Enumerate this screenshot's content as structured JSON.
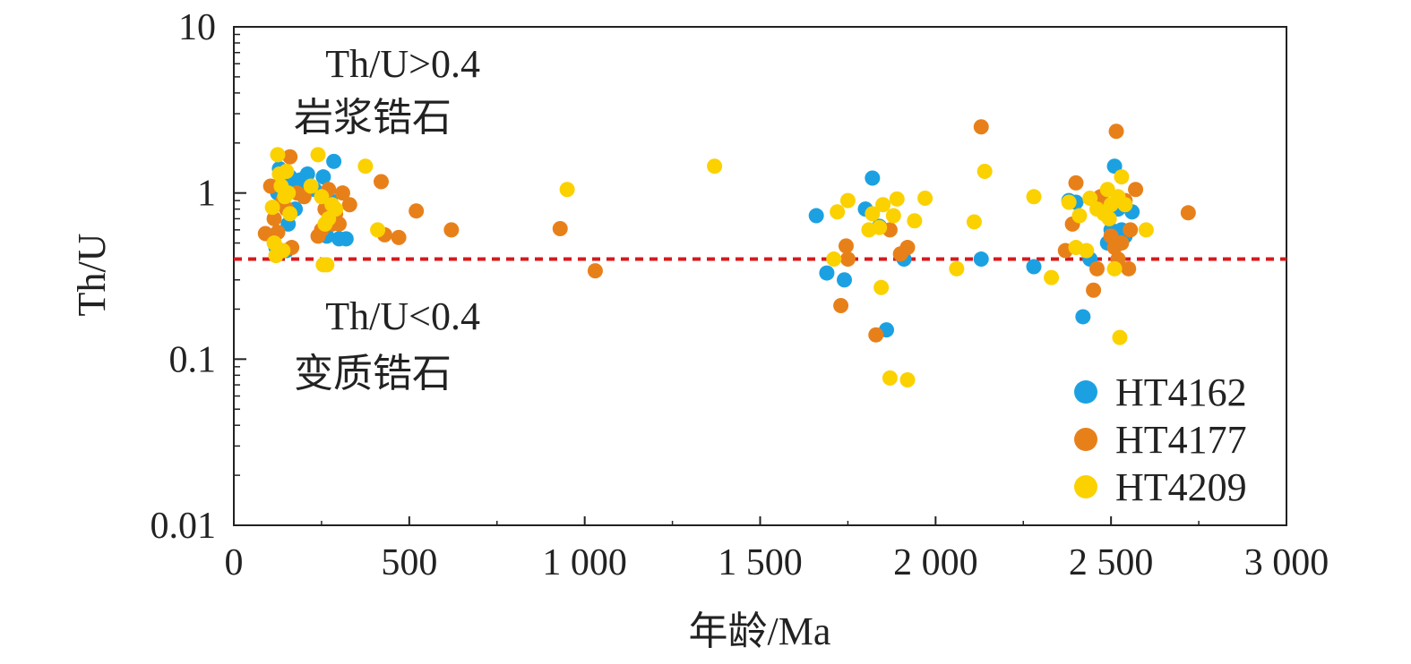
{
  "chart_data": {
    "type": "scatter",
    "xlabel": "年龄/Ma",
    "ylabel": "Th/U",
    "xlim": [
      0,
      3000
    ],
    "ylim": [
      0.01,
      10
    ],
    "yscale": "log",
    "grid": false,
    "legend_position": "bottom-right",
    "x_ticks": [
      {
        "value": 0,
        "label": "0"
      },
      {
        "value": 500,
        "label": "500"
      },
      {
        "value": 1000,
        "label": "1 000"
      },
      {
        "value": 1500,
        "label": "1 500"
      },
      {
        "value": 2000,
        "label": "2 000"
      },
      {
        "value": 2500,
        "label": "2 500"
      },
      {
        "value": 3000,
        "label": "3 000"
      }
    ],
    "y_ticks": [
      {
        "value": 0.01,
        "label": "0.01"
      },
      {
        "value": 0.1,
        "label": "0.1"
      },
      {
        "value": 1,
        "label": "1"
      },
      {
        "value": 10,
        "label": "10"
      }
    ],
    "reference_line": {
      "y": 0.4,
      "color": "#d7191c",
      "style": "dashed"
    },
    "annotations": {
      "upper_line1": "Th/U>0.4",
      "upper_line2": "岩浆锆石",
      "lower_line1": "Th/U<0.4",
      "lower_line2": "变质锆石"
    },
    "series": [
      {
        "name": "HT4162",
        "color": "#1ba1e2",
        "points": [
          [
            120,
            0.47
          ],
          [
            125,
            1.0
          ],
          [
            130,
            1.4
          ],
          [
            140,
            1.2
          ],
          [
            150,
            0.45
          ],
          [
            155,
            0.65
          ],
          [
            160,
            1.25
          ],
          [
            165,
            1.1
          ],
          [
            175,
            0.8
          ],
          [
            190,
            1.2
          ],
          [
            200,
            1.05
          ],
          [
            210,
            1.3
          ],
          [
            230,
            1.05
          ],
          [
            255,
            1.25
          ],
          [
            265,
            0.55
          ],
          [
            275,
            0.9
          ],
          [
            285,
            1.55
          ],
          [
            300,
            0.53
          ],
          [
            320,
            0.53
          ],
          [
            1660,
            0.73
          ],
          [
            1690,
            0.33
          ],
          [
            1740,
            0.3
          ],
          [
            1800,
            0.8
          ],
          [
            1820,
            1.23
          ],
          [
            1840,
            0.63
          ],
          [
            1860,
            0.15
          ],
          [
            1910,
            0.4
          ],
          [
            2130,
            0.4
          ],
          [
            2280,
            0.36
          ],
          [
            2380,
            0.9
          ],
          [
            2400,
            0.88
          ],
          [
            2420,
            0.18
          ],
          [
            2440,
            0.4
          ],
          [
            2490,
            0.5
          ],
          [
            2500,
            0.6
          ],
          [
            2510,
            1.45
          ],
          [
            2520,
            0.8
          ],
          [
            2530,
            0.6
          ],
          [
            2540,
            0.55
          ],
          [
            2560,
            0.77
          ]
        ]
      },
      {
        "name": "HT4177",
        "color": "#e8801a",
        "points": [
          [
            90,
            0.57
          ],
          [
            105,
            1.1
          ],
          [
            115,
            0.7
          ],
          [
            125,
            0.58
          ],
          [
            140,
            0.9
          ],
          [
            150,
            0.8
          ],
          [
            160,
            1.65
          ],
          [
            165,
            0.47
          ],
          [
            180,
            1.0
          ],
          [
            200,
            0.95
          ],
          [
            240,
            0.55
          ],
          [
            250,
            0.6
          ],
          [
            260,
            0.8
          ],
          [
            270,
            1.05
          ],
          [
            280,
            0.65
          ],
          [
            290,
            0.75
          ],
          [
            300,
            0.65
          ],
          [
            310,
            1.0
          ],
          [
            330,
            0.85
          ],
          [
            420,
            1.17
          ],
          [
            430,
            0.56
          ],
          [
            470,
            0.54
          ],
          [
            520,
            0.78
          ],
          [
            620,
            0.6
          ],
          [
            930,
            0.61
          ],
          [
            1030,
            0.34
          ],
          [
            1730,
            0.21
          ],
          [
            1745,
            0.48
          ],
          [
            1750,
            0.4
          ],
          [
            1830,
            0.14
          ],
          [
            1870,
            0.6
          ],
          [
            1900,
            0.43
          ],
          [
            1920,
            0.47
          ],
          [
            2130,
            2.5
          ],
          [
            2370,
            0.45
          ],
          [
            2390,
            0.65
          ],
          [
            2400,
            1.15
          ],
          [
            2450,
            0.26
          ],
          [
            2460,
            0.35
          ],
          [
            2470,
            0.95
          ],
          [
            2490,
            0.85
          ],
          [
            2500,
            0.55
          ],
          [
            2510,
            0.47
          ],
          [
            2515,
            2.35
          ],
          [
            2520,
            0.4
          ],
          [
            2530,
            0.5
          ],
          [
            2540,
            0.9
          ],
          [
            2550,
            0.35
          ],
          [
            2555,
            0.6
          ],
          [
            2570,
            1.05
          ],
          [
            2720,
            0.76
          ]
        ]
      },
      {
        "name": "HT4209",
        "color": "#fbd100",
        "points": [
          [
            110,
            0.82
          ],
          [
            115,
            0.5
          ],
          [
            120,
            0.42
          ],
          [
            125,
            1.7
          ],
          [
            130,
            1.3
          ],
          [
            135,
            1.1
          ],
          [
            140,
            0.45
          ],
          [
            145,
            0.95
          ],
          [
            150,
            1.35
          ],
          [
            155,
            1.0
          ],
          [
            160,
            0.75
          ],
          [
            220,
            1.1
          ],
          [
            240,
            1.7
          ],
          [
            250,
            0.95
          ],
          [
            255,
            0.37
          ],
          [
            260,
            0.65
          ],
          [
            265,
            0.37
          ],
          [
            270,
            0.7
          ],
          [
            280,
            0.85
          ],
          [
            290,
            0.8
          ],
          [
            375,
            1.45
          ],
          [
            410,
            0.6
          ],
          [
            950,
            1.05
          ],
          [
            1370,
            1.45
          ],
          [
            1710,
            0.4
          ],
          [
            1720,
            0.77
          ],
          [
            1750,
            0.9
          ],
          [
            1810,
            0.6
          ],
          [
            1820,
            0.75
          ],
          [
            1840,
            0.62
          ],
          [
            1845,
            0.27
          ],
          [
            1850,
            0.85
          ],
          [
            1870,
            0.077
          ],
          [
            1880,
            0.73
          ],
          [
            1890,
            0.92
          ],
          [
            1920,
            0.075
          ],
          [
            1940,
            0.68
          ],
          [
            1970,
            0.93
          ],
          [
            2060,
            0.35
          ],
          [
            2110,
            0.67
          ],
          [
            2140,
            1.35
          ],
          [
            2280,
            0.95
          ],
          [
            2330,
            0.31
          ],
          [
            2380,
            0.88
          ],
          [
            2400,
            0.47
          ],
          [
            2410,
            0.73
          ],
          [
            2430,
            0.45
          ],
          [
            2440,
            0.93
          ],
          [
            2460,
            0.8
          ],
          [
            2480,
            0.75
          ],
          [
            2490,
            1.05
          ],
          [
            2495,
            0.7
          ],
          [
            2500,
            0.85
          ],
          [
            2510,
            0.35
          ],
          [
            2520,
            0.95
          ],
          [
            2525,
            0.135
          ],
          [
            2530,
            1.25
          ],
          [
            2540,
            0.85
          ],
          [
            2600,
            0.6
          ]
        ]
      }
    ]
  }
}
